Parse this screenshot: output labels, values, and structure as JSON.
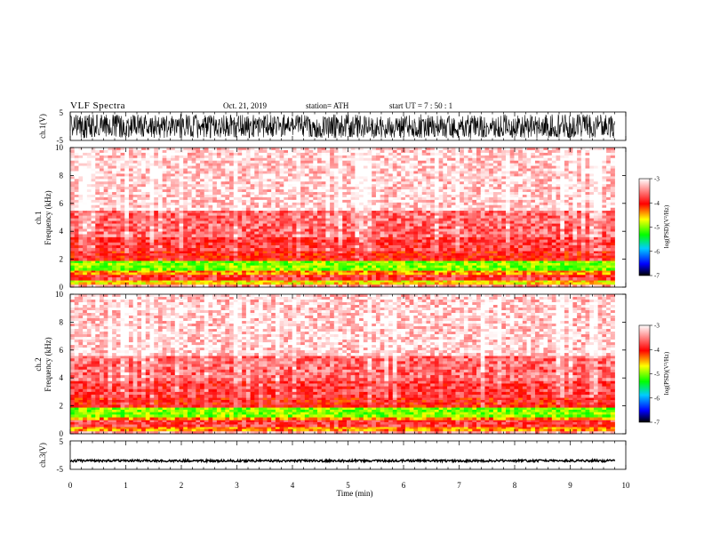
{
  "header": {
    "title": "VLF  Spectra",
    "date": "Oct. 21, 2019",
    "station": "station= ATH",
    "start": "start  UT  =    7  : 50 : 1"
  },
  "chart_data": {
    "type": "heatmap",
    "xlabel": "Time  (min)",
    "xlim": [
      0,
      10
    ],
    "xticks": [
      "0",
      "1",
      "2",
      "3",
      "4",
      "5",
      "6",
      "7",
      "8",
      "9",
      "10"
    ],
    "data_end_min": 9.8,
    "panels": [
      {
        "id": "ch1-waveform",
        "type": "line",
        "ylabel": "ch.1(V)",
        "ylim": [
          -5,
          5
        ],
        "yticks": [
          "5",
          "-5"
        ],
        "amplitude_range": [
          -4.2,
          4.2
        ]
      },
      {
        "id": "ch1-spectrogram",
        "type": "heatmap",
        "ylabel_lines": [
          "ch.1",
          "Frequency  (kHz)"
        ],
        "ylim": [
          0,
          10
        ],
        "yticks": [
          "0",
          "2",
          "4",
          "6",
          "8",
          "10"
        ],
        "colorbar": {
          "label": "log(PSD)(V²/Hz)",
          "ticks": [
            "-3",
            "-4",
            "-5",
            "-6",
            "-7"
          ],
          "range": [
            -7,
            -3
          ]
        },
        "bands_khz_logpsd": [
          {
            "f": [
              0.0,
              0.2
            ],
            "psd": -3.4
          },
          {
            "f": [
              0.2,
              0.5
            ],
            "psd": -4.6
          },
          {
            "f": [
              0.5,
              0.9
            ],
            "psd": -3.8
          },
          {
            "f": [
              0.9,
              1.2
            ],
            "psd": -4.4
          },
          {
            "f": [
              1.2,
              1.9
            ],
            "psd": -5.0
          },
          {
            "f": [
              1.9,
              2.6
            ],
            "psd": -4.0
          },
          {
            "f": [
              2.6,
              3.6
            ],
            "psd": -3.8
          },
          {
            "f": [
              3.6,
              5.5
            ],
            "psd": -3.6
          },
          {
            "f": [
              5.5,
              10.0
            ],
            "psd": -3.2
          }
        ]
      },
      {
        "id": "ch2-spectrogram",
        "type": "heatmap",
        "ylabel_lines": [
          "ch.2",
          "Frequency  (kHz)"
        ],
        "ylim": [
          0,
          10
        ],
        "yticks": [
          "0",
          "2",
          "4",
          "6",
          "8",
          "10"
        ],
        "colorbar": {
          "label": "log(PSD)(V²/Hz)",
          "ticks": [
            "-3",
            "-4",
            "-5",
            "-6",
            "-7"
          ],
          "range": [
            -7,
            -3
          ]
        },
        "bands_khz_logpsd": [
          {
            "f": [
              0.0,
              0.2
            ],
            "psd": -3.4
          },
          {
            "f": [
              0.2,
              0.5
            ],
            "psd": -4.4
          },
          {
            "f": [
              0.5,
              1.0
            ],
            "psd": -3.8
          },
          {
            "f": [
              1.0,
              1.2
            ],
            "psd": -4.4
          },
          {
            "f": [
              1.2,
              1.9
            ],
            "psd": -5.0
          },
          {
            "f": [
              1.9,
              2.6
            ],
            "psd": -4.0
          },
          {
            "f": [
              2.6,
              3.8
            ],
            "psd": -3.8
          },
          {
            "f": [
              3.8,
              5.6
            ],
            "psd": -3.6
          },
          {
            "f": [
              5.6,
              10.0
            ],
            "psd": -3.2
          }
        ]
      },
      {
        "id": "ch3-waveform",
        "type": "line",
        "ylabel": "ch.3(V)",
        "ylim": [
          -5,
          5
        ],
        "yticks": [
          "5",
          "-5"
        ],
        "amplitude_range": [
          -0.4,
          0.4
        ],
        "offset": -2
      }
    ]
  },
  "colors": {
    "colormap": [
      "#000000",
      "#0000ff",
      "#00ccff",
      "#00ff00",
      "#ffff00",
      "#ff0000",
      "#ffffff"
    ]
  }
}
